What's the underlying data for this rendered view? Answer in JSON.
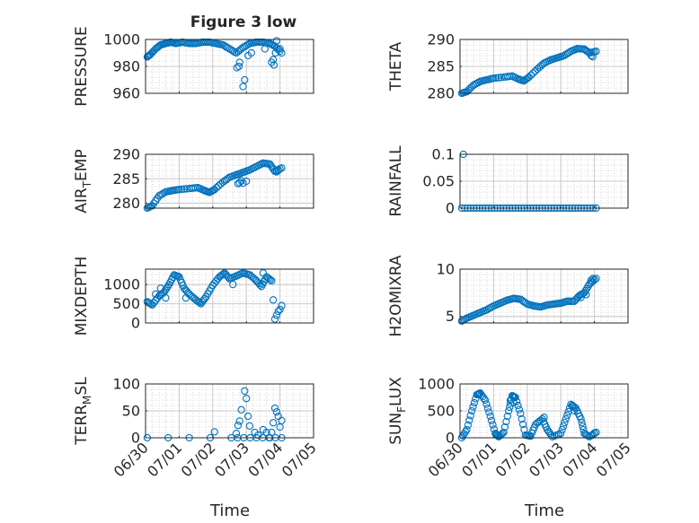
{
  "figure": {
    "title": "Figure 3 low",
    "xlabel": "Time",
    "xticklabels": [
      "06/30",
      "07/01",
      "07/02",
      "07/03",
      "07/04",
      "07/05"
    ]
  },
  "chart_data": [
    {
      "type": "scatter",
      "title": "Figure 3 low",
      "xlabel": "",
      "ylabel": "PRESSURE",
      "xlim": [
        0,
        5
      ],
      "ylim": [
        960,
        1000
      ],
      "yticks": [
        960,
        980,
        1000
      ],
      "grid": "on",
      "minor_grid": "on",
      "marker": "circle",
      "color": "#0072BD",
      "anchors": [
        [
          0.05,
          987
        ],
        [
          0.15,
          989
        ],
        [
          0.3,
          993
        ],
        [
          0.45,
          996
        ],
        [
          0.6,
          997
        ],
        [
          0.75,
          998
        ],
        [
          0.9,
          997
        ],
        [
          1.1,
          998
        ],
        [
          1.3,
          997
        ],
        [
          1.5,
          997
        ],
        [
          1.7,
          998
        ],
        [
          1.9,
          998
        ],
        [
          2.1,
          997
        ],
        [
          2.3,
          996
        ],
        [
          2.5,
          993
        ],
        [
          2.7,
          990
        ],
        [
          2.9,
          994
        ],
        [
          3.1,
          997
        ],
        [
          3.3,
          998
        ],
        [
          3.5,
          998
        ],
        [
          3.7,
          997
        ],
        [
          3.85,
          995
        ],
        [
          4.05,
          990
        ]
      ],
      "extra_points": [
        [
          2.72,
          979
        ],
        [
          2.78,
          980
        ],
        [
          2.8,
          983
        ],
        [
          2.9,
          965
        ],
        [
          2.95,
          970
        ],
        [
          3.05,
          988
        ],
        [
          3.15,
          990
        ],
        [
          3.55,
          993
        ],
        [
          3.75,
          983
        ],
        [
          3.8,
          985
        ],
        [
          3.87,
          990
        ],
        [
          3.9,
          999
        ],
        [
          4.0,
          993
        ],
        [
          3.82,
          981
        ]
      ]
    },
    {
      "type": "scatter",
      "xlabel": "",
      "ylabel": "THETA",
      "xlim": [
        0,
        5
      ],
      "ylim": [
        280,
        290
      ],
      "yticks": [
        280,
        285,
        290
      ],
      "grid": "on",
      "minor_grid": "on",
      "marker": "circle",
      "color": "#0072BD",
      "anchors": [
        [
          0.05,
          280
        ],
        [
          0.2,
          280.3
        ],
        [
          0.4,
          281.5
        ],
        [
          0.6,
          282.2
        ],
        [
          0.8,
          282.5
        ],
        [
          1.0,
          282.8
        ],
        [
          1.3,
          283
        ],
        [
          1.55,
          283.2
        ],
        [
          1.75,
          282.6
        ],
        [
          1.9,
          282.3
        ],
        [
          2.05,
          283
        ],
        [
          2.3,
          284.5
        ],
        [
          2.5,
          285.6
        ],
        [
          2.7,
          286.2
        ],
        [
          2.9,
          286.6
        ],
        [
          3.1,
          287
        ],
        [
          3.3,
          287.8
        ],
        [
          3.5,
          288.3
        ],
        [
          3.7,
          288.2
        ],
        [
          3.85,
          287.5
        ],
        [
          4.05,
          287.8
        ]
      ],
      "extra_points": [
        [
          3.9,
          287
        ],
        [
          3.95,
          286.8
        ]
      ]
    },
    {
      "type": "scatter",
      "xlabel": "",
      "ylabel": "AIR_TEMP",
      "xlim": [
        0,
        5
      ],
      "ylim": [
        279,
        290
      ],
      "yticks": [
        280,
        285,
        290
      ],
      "grid": "on",
      "minor_grid": "on",
      "marker": "circle",
      "color": "#0072BD",
      "anchors": [
        [
          0.05,
          279
        ],
        [
          0.2,
          279.5
        ],
        [
          0.4,
          281.5
        ],
        [
          0.6,
          282.3
        ],
        [
          0.8,
          282.6
        ],
        [
          1.0,
          282.8
        ],
        [
          1.3,
          283
        ],
        [
          1.55,
          283.2
        ],
        [
          1.75,
          282.6
        ],
        [
          1.9,
          282.2
        ],
        [
          2.05,
          282.8
        ],
        [
          2.3,
          284.3
        ],
        [
          2.5,
          285.3
        ],
        [
          2.7,
          285.8
        ],
        [
          2.9,
          286.3
        ],
        [
          3.1,
          286.8
        ],
        [
          3.3,
          287.5
        ],
        [
          3.5,
          288.2
        ],
        [
          3.7,
          288
        ],
        [
          3.85,
          286.5
        ],
        [
          4.05,
          287.2
        ]
      ],
      "extra_points": [
        [
          2.75,
          284
        ],
        [
          2.8,
          284.2
        ],
        [
          2.85,
          284.6
        ],
        [
          2.9,
          284.1
        ],
        [
          3.0,
          284.5
        ],
        [
          3.9,
          286.4
        ],
        [
          3.95,
          286.7
        ]
      ]
    },
    {
      "type": "scatter",
      "xlabel": "",
      "ylabel": "RAINFALL",
      "xlim": [
        0,
        5
      ],
      "ylim": [
        0,
        0.1
      ],
      "yticks": [
        0,
        0.05,
        0.1
      ],
      "grid": "on",
      "minor_grid": "on",
      "marker": "circle",
      "color": "#0072BD",
      "anchors": [
        [
          0.05,
          0
        ],
        [
          4.05,
          0
        ]
      ],
      "extra_points": [
        [
          0.1,
          0.1
        ]
      ]
    },
    {
      "type": "scatter",
      "xlabel": "",
      "ylabel": "MIXDEPTH",
      "xlim": [
        0,
        5
      ],
      "ylim": [
        0,
        1400
      ],
      "yticks": [
        0,
        500,
        1000
      ],
      "grid": "on",
      "minor_grid": "on",
      "marker": "circle",
      "color": "#0072BD",
      "anchors": [
        [
          0.05,
          550
        ],
        [
          0.2,
          470
        ],
        [
          0.4,
          700
        ],
        [
          0.55,
          800
        ],
        [
          0.7,
          1000
        ],
        [
          0.85,
          1250
        ],
        [
          1.0,
          1200
        ],
        [
          1.15,
          900
        ],
        [
          1.3,
          750
        ],
        [
          1.5,
          600
        ],
        [
          1.65,
          500
        ],
        [
          1.8,
          680
        ],
        [
          2.0,
          980
        ],
        [
          2.2,
          1200
        ],
        [
          2.35,
          1300
        ],
        [
          2.5,
          1150
        ],
        [
          2.7,
          1220
        ],
        [
          2.9,
          1300
        ],
        [
          3.1,
          1250
        ],
        [
          3.3,
          1100
        ],
        [
          3.45,
          950
        ],
        [
          3.6,
          1200
        ],
        [
          3.75,
          1100
        ]
      ],
      "extra_points": [
        [
          0.3,
          750
        ],
        [
          0.45,
          900
        ],
        [
          0.6,
          650
        ],
        [
          1.2,
          650
        ],
        [
          2.6,
          1000
        ],
        [
          3.5,
          1300
        ],
        [
          3.8,
          600
        ],
        [
          3.85,
          100
        ],
        [
          3.9,
          200
        ],
        [
          3.95,
          300
        ],
        [
          4.0,
          350
        ],
        [
          4.05,
          450
        ]
      ]
    },
    {
      "type": "scatter",
      "xlabel": "",
      "ylabel": "H2OMIXRA",
      "xlim": [
        0,
        5
      ],
      "ylim": [
        4.3,
        10
      ],
      "yticks": [
        5,
        10
      ],
      "grid": "on",
      "minor_grid": "on",
      "marker": "circle",
      "color": "#0072BD",
      "anchors": [
        [
          0.05,
          4.5
        ],
        [
          0.2,
          4.8
        ],
        [
          0.4,
          5.1
        ],
        [
          0.6,
          5.4
        ],
        [
          0.8,
          5.7
        ],
        [
          1.0,
          6.1
        ],
        [
          1.2,
          6.4
        ],
        [
          1.4,
          6.7
        ],
        [
          1.6,
          6.9
        ],
        [
          1.8,
          6.8
        ],
        [
          2.0,
          6.3
        ],
        [
          2.2,
          6.1
        ],
        [
          2.4,
          6.0
        ],
        [
          2.6,
          6.2
        ],
        [
          2.8,
          6.3
        ],
        [
          3.0,
          6.4
        ],
        [
          3.2,
          6.6
        ],
        [
          3.4,
          6.6
        ],
        [
          3.55,
          7.2
        ],
        [
          3.7,
          7.5
        ],
        [
          3.85,
          8.4
        ],
        [
          4.05,
          9.0
        ]
      ],
      "extra_points": [
        [
          3.9,
          8.8
        ],
        [
          3.95,
          9.0
        ],
        [
          4.0,
          8.9
        ],
        [
          3.6,
          7.0
        ],
        [
          3.75,
          7.3
        ]
      ]
    },
    {
      "type": "scatter",
      "xlabel": "",
      "ylabel": "TERR_MSL",
      "xlim": [
        0,
        5
      ],
      "ylim": [
        0,
        100
      ],
      "yticks": [
        0,
        50,
        100
      ],
      "grid": "on",
      "minor_grid": "on",
      "marker": "circle",
      "color": "#0072BD",
      "anchors": [
        [
          0.05,
          0
        ],
        [
          2.55,
          0
        ],
        [
          3.3,
          0
        ],
        [
          4.05,
          0
        ]
      ],
      "extra_points": [
        [
          2.05,
          11
        ],
        [
          2.7,
          8
        ],
        [
          2.75,
          23
        ],
        [
          2.8,
          31
        ],
        [
          2.85,
          52
        ],
        [
          2.95,
          87
        ],
        [
          3.0,
          73
        ],
        [
          3.05,
          40
        ],
        [
          3.1,
          22
        ],
        [
          3.25,
          10
        ],
        [
          3.35,
          5
        ],
        [
          3.5,
          15
        ],
        [
          3.6,
          10
        ],
        [
          3.7,
          0
        ],
        [
          3.75,
          10
        ],
        [
          3.8,
          28
        ],
        [
          3.85,
          55
        ],
        [
          3.9,
          48
        ],
        [
          3.95,
          40
        ],
        [
          4.0,
          20
        ],
        [
          4.05,
          32
        ]
      ]
    },
    {
      "type": "scatter",
      "xlabel": "",
      "ylabel": "SUN_FLUX",
      "xlim": [
        0,
        5
      ],
      "ylim": [
        0,
        1000
      ],
      "yticks": [
        0,
        500,
        1000
      ],
      "grid": "on",
      "minor_grid": "on",
      "marker": "circle",
      "color": "#0072BD",
      "anchors": [
        [
          0.05,
          0
        ],
        [
          0.2,
          150
        ],
        [
          0.35,
          500
        ],
        [
          0.5,
          800
        ],
        [
          0.6,
          830
        ],
        [
          0.75,
          700
        ],
        [
          0.9,
          400
        ],
        [
          1.05,
          80
        ],
        [
          1.15,
          20
        ],
        [
          1.3,
          100
        ],
        [
          1.45,
          500
        ],
        [
          1.55,
          780
        ],
        [
          1.65,
          750
        ],
        [
          1.8,
          450
        ],
        [
          1.95,
          50
        ],
        [
          2.1,
          30
        ],
        [
          2.25,
          250
        ],
        [
          2.45,
          350
        ],
        [
          2.6,
          150
        ],
        [
          2.75,
          20
        ],
        [
          3.0,
          80
        ],
        [
          3.15,
          350
        ],
        [
          3.3,
          620
        ],
        [
          3.45,
          550
        ],
        [
          3.6,
          350
        ],
        [
          3.7,
          80
        ],
        [
          3.85,
          20
        ],
        [
          4.05,
          100
        ]
      ],
      "extra_points": [
        [
          1.5,
          700
        ],
        [
          1.6,
          650
        ],
        [
          2.35,
          300
        ],
        [
          2.5,
          380
        ],
        [
          3.35,
          600
        ],
        [
          3.4,
          500
        ],
        [
          3.95,
          50
        ],
        [
          4.0,
          90
        ]
      ]
    }
  ]
}
